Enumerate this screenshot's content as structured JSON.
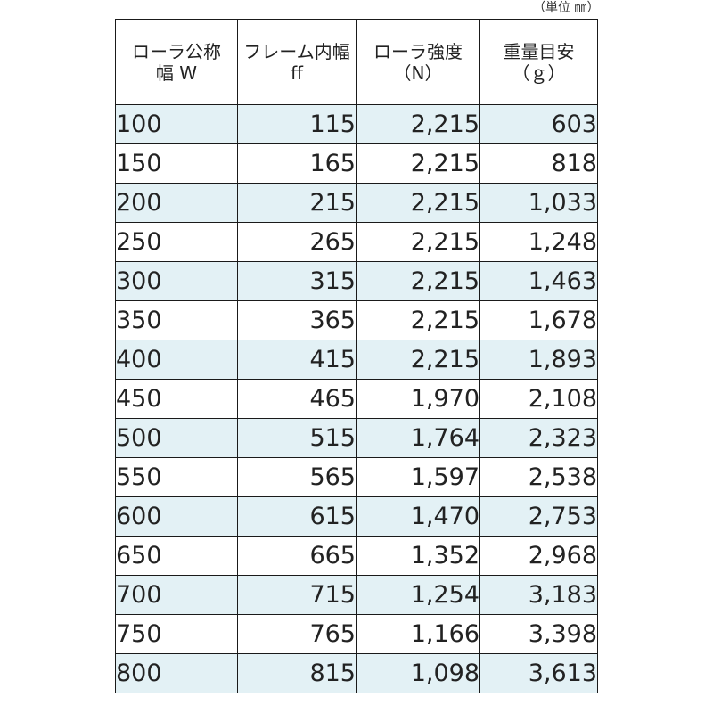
{
  "unit_note": "（単位 ㎜）",
  "table": {
    "headers": [
      {
        "line1": "ローラ公称",
        "line2": "幅 W"
      },
      {
        "line1": "フレーム内幅",
        "line2": "ff"
      },
      {
        "line1": "ローラ強度",
        "line2": "（N）"
      },
      {
        "line1": "重量目安",
        "line2": "（ｇ）"
      }
    ],
    "rows": [
      [
        "100",
        "115",
        "2,215",
        "603"
      ],
      [
        "150",
        "165",
        "2,215",
        "818"
      ],
      [
        "200",
        "215",
        "2,215",
        "1,033"
      ],
      [
        "250",
        "265",
        "2,215",
        "1,248"
      ],
      [
        "300",
        "315",
        "2,215",
        "1,463"
      ],
      [
        "350",
        "365",
        "2,215",
        "1,678"
      ],
      [
        "400",
        "415",
        "2,215",
        "1,893"
      ],
      [
        "450",
        "465",
        "1,970",
        "2,108"
      ],
      [
        "500",
        "515",
        "1,764",
        "2,323"
      ],
      [
        "550",
        "565",
        "1,597",
        "2,538"
      ],
      [
        "600",
        "615",
        "1,470",
        "2,753"
      ],
      [
        "650",
        "665",
        "1,352",
        "2,968"
      ],
      [
        "700",
        "715",
        "1,254",
        "3,183"
      ],
      [
        "750",
        "765",
        "1,166",
        "3,398"
      ],
      [
        "800",
        "815",
        "1,098",
        "3,613"
      ]
    ],
    "shaded_row_color": "#e3f1f5",
    "border_color": "#1a1a1a"
  }
}
